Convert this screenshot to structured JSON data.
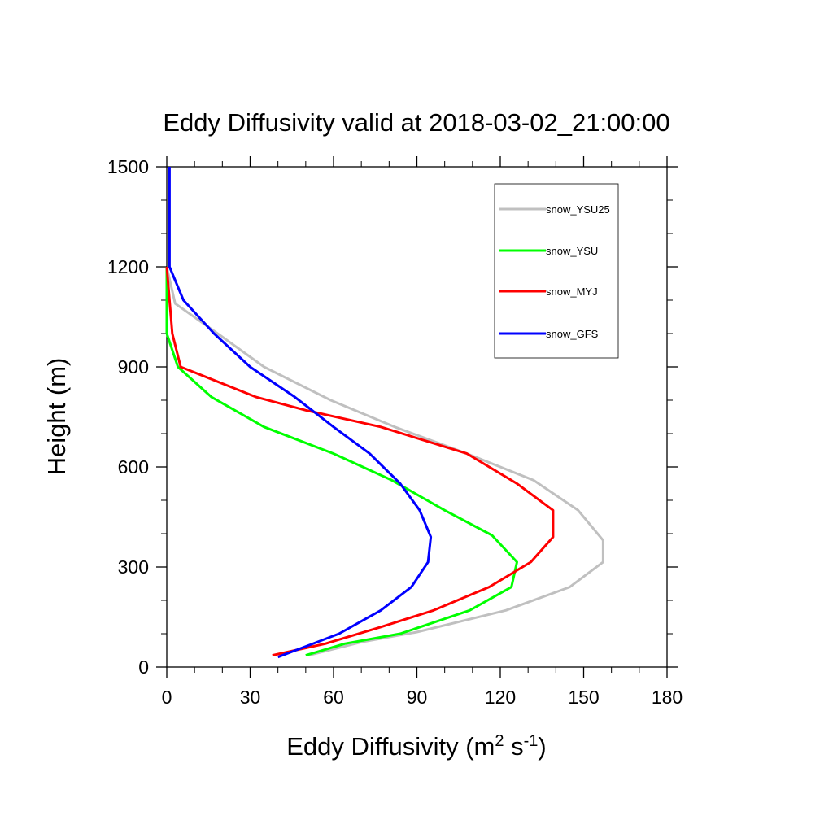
{
  "chart_data": {
    "type": "line",
    "title": "Eddy Diffusivity valid at 2018-03-02_21:00:00",
    "xlabel": {
      "base": "Eddy Diffusivity (m",
      "sup1": "2",
      "mid": " s",
      "sup2": "-1",
      "end": ")"
    },
    "ylabel": "Height (m)",
    "xlim": [
      0,
      180
    ],
    "ylim": [
      0,
      1500
    ],
    "xticks": [
      0,
      30,
      60,
      90,
      120,
      150,
      180
    ],
    "yticks": [
      0,
      300,
      600,
      900,
      1200,
      1500
    ],
    "xtick_labels": [
      "0",
      "30",
      "60",
      "90",
      "120",
      "150",
      "180"
    ],
    "ytick_labels": [
      "0",
      "300",
      "600",
      "900",
      "1200",
      "1500"
    ],
    "legend_position": "top-right",
    "series": [
      {
        "name": "snow_YSU25",
        "color": "#c0c0c0",
        "points": [
          [
            51,
            35
          ],
          [
            70,
            75
          ],
          [
            90,
            105
          ],
          [
            122,
            170
          ],
          [
            145,
            240
          ],
          [
            157,
            315
          ],
          [
            157,
            380
          ],
          [
            148,
            470
          ],
          [
            132,
            560
          ],
          [
            108,
            640
          ],
          [
            82,
            720
          ],
          [
            59,
            800
          ],
          [
            35,
            900
          ],
          [
            20,
            990
          ],
          [
            3,
            1090
          ],
          [
            0,
            1200
          ]
        ]
      },
      {
        "name": "snow_YSU",
        "color": "#00ff00",
        "points": [
          [
            50,
            35
          ],
          [
            64,
            70
          ],
          [
            84,
            100
          ],
          [
            109,
            170
          ],
          [
            124,
            240
          ],
          [
            126,
            315
          ],
          [
            117,
            395
          ],
          [
            100,
            470
          ],
          [
            81,
            560
          ],
          [
            60,
            640
          ],
          [
            35,
            720
          ],
          [
            16,
            810
          ],
          [
            4,
            900
          ],
          [
            0,
            1000
          ],
          [
            0,
            1200
          ]
        ]
      },
      {
        "name": "snow_MYJ",
        "color": "#ff0000",
        "points": [
          [
            38,
            35
          ],
          [
            57,
            70
          ],
          [
            77,
            120
          ],
          [
            96,
            170
          ],
          [
            116,
            240
          ],
          [
            131,
            315
          ],
          [
            139,
            390
          ],
          [
            139,
            470
          ],
          [
            126,
            550
          ],
          [
            108,
            640
          ],
          [
            77,
            720
          ],
          [
            50,
            770
          ],
          [
            32,
            810
          ],
          [
            5,
            900
          ],
          [
            2,
            1000
          ],
          [
            0,
            1200
          ]
        ]
      },
      {
        "name": "snow_GFS",
        "color": "#0000ff",
        "points": [
          [
            40,
            30
          ],
          [
            62,
            100
          ],
          [
            77,
            170
          ],
          [
            88,
            240
          ],
          [
            94,
            315
          ],
          [
            95,
            390
          ],
          [
            91,
            470
          ],
          [
            84,
            550
          ],
          [
            73,
            640
          ],
          [
            60,
            720
          ],
          [
            46,
            810
          ],
          [
            30,
            900
          ],
          [
            17,
            1000
          ],
          [
            6,
            1100
          ],
          [
            1,
            1200
          ],
          [
            1,
            1300
          ],
          [
            1,
            1500
          ]
        ]
      }
    ]
  }
}
